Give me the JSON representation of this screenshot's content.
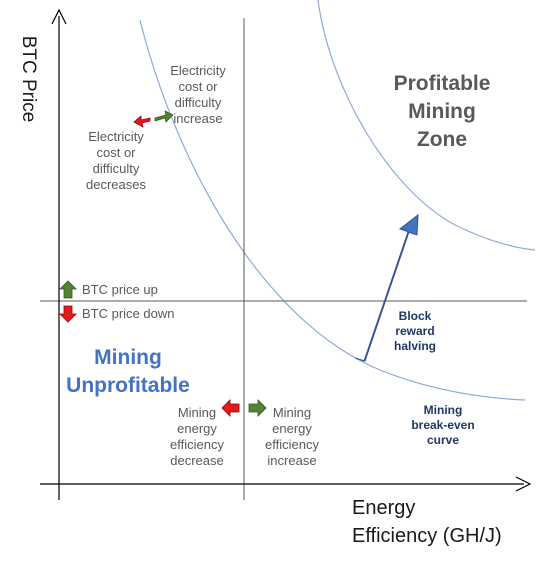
{
  "axes": {
    "y_label": "BTC Price",
    "x_label_line1": "Energy",
    "x_label_line2": "Efficiency (GH/J)"
  },
  "zones": {
    "profitable": "Profitable\nMining\nZone",
    "unprofitable": "Mining\nUnprofitable"
  },
  "notes": {
    "electricity_increase": "Electricity\ncost or\ndifficulty\nincrease",
    "electricity_decrease": "Electricity\ncost or\ndifficulty\ndecreases",
    "btc_up": "BTC price up",
    "btc_down": "BTC price down",
    "energy_decrease": "Mining\nenergy\nefficiency\ndecrease",
    "energy_increase": "Mining\nenergy\nefficiency\nincrease",
    "block_reward": "Block\nreward\nhalving",
    "break_even": "Mining\nbreak-even\ncurve"
  },
  "colors": {
    "axis": "#000000",
    "curve": "#8ea9db",
    "divider": "#595959",
    "up_arrow": "#548235",
    "down_arrow": "#e31a1c",
    "big_arrow": "#4472c4",
    "profitable_text": "#595959",
    "unprofitable_text": "#4472c4",
    "dark_note": "#1f3864"
  }
}
